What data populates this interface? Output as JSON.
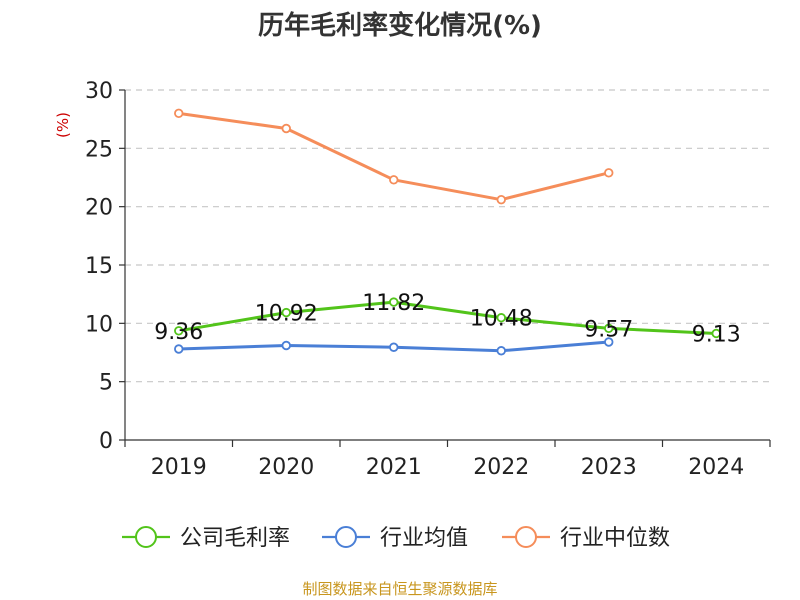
{
  "chart_data": {
    "type": "line",
    "title": "历年毛利率变化情况(%)",
    "ylabel": "(%)",
    "xlabel": "",
    "ylim": [
      0,
      30
    ],
    "yticks": [
      0,
      5,
      10,
      15,
      20,
      25,
      30
    ],
    "categories": [
      "2019",
      "2020",
      "2021",
      "2022",
      "2023",
      "2024"
    ],
    "grid": true,
    "legend_position": "bottom",
    "series": [
      {
        "name": "公司毛利率",
        "color": "#52c41a",
        "labeled": true,
        "values": [
          9.36,
          10.92,
          11.82,
          10.48,
          9.57,
          9.13
        ]
      },
      {
        "name": "行业均值",
        "color": "#4a7fd6",
        "labeled": false,
        "values": [
          7.8,
          8.1,
          7.95,
          7.65,
          8.4,
          null
        ]
      },
      {
        "name": "行业中位数",
        "color": "#f58d5a",
        "labeled": false,
        "values": [
          28.0,
          26.7,
          22.3,
          20.6,
          22.9,
          null
        ]
      }
    ],
    "source": "制图数据来自恒生聚源数据库"
  }
}
